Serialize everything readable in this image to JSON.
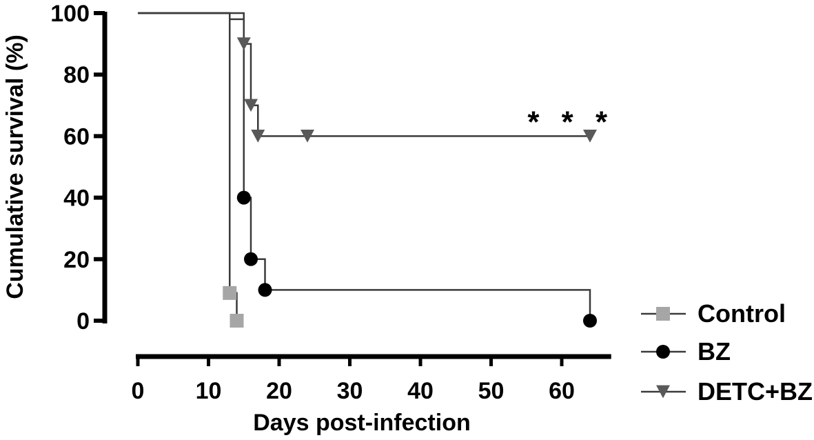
{
  "chart_data": {
    "type": "line",
    "title": "",
    "xlabel": "Days post-infection",
    "ylabel": "Cumulative survival (%)",
    "xlim": [
      0,
      67
    ],
    "ylim": [
      0,
      100
    ],
    "x_ticks": [
      0,
      10,
      20,
      30,
      40,
      50,
      60
    ],
    "y_ticks": [
      0,
      20,
      40,
      60,
      80,
      100
    ],
    "grid": false,
    "legend": "bottom-right",
    "annotation": "* * *",
    "series": [
      {
        "name": "Control",
        "color": "#a6a6a6",
        "marker": "square",
        "steps": [
          [
            0,
            100
          ],
          [
            13,
            100
          ],
          [
            13,
            9
          ],
          [
            14,
            9
          ],
          [
            14,
            0
          ]
        ],
        "markers": [
          [
            13,
            9
          ],
          [
            14,
            0
          ]
        ]
      },
      {
        "name": "BZ",
        "color": "#000000",
        "marker": "circle",
        "steps": [
          [
            0,
            100
          ],
          [
            15,
            100
          ],
          [
            15,
            40
          ],
          [
            16,
            40
          ],
          [
            16,
            20
          ],
          [
            18,
            20
          ],
          [
            18,
            10
          ],
          [
            64,
            10
          ],
          [
            64,
            0
          ]
        ],
        "markers": [
          [
            15,
            40
          ],
          [
            16,
            20
          ],
          [
            18,
            10
          ],
          [
            64,
            0
          ]
        ]
      },
      {
        "name": "DETC+BZ",
        "color": "#595959",
        "marker": "triangle-down",
        "steps": [
          [
            0,
            100
          ],
          [
            13,
            100
          ],
          [
            13,
            98
          ],
          [
            15,
            98
          ],
          [
            15,
            90
          ],
          [
            16,
            90
          ],
          [
            16,
            70
          ],
          [
            17,
            70
          ],
          [
            17,
            60
          ],
          [
            64,
            60
          ]
        ],
        "markers": [
          [
            15,
            90
          ],
          [
            16,
            70
          ],
          [
            17,
            60
          ],
          [
            24,
            60
          ],
          [
            64,
            60
          ]
        ]
      }
    ]
  }
}
